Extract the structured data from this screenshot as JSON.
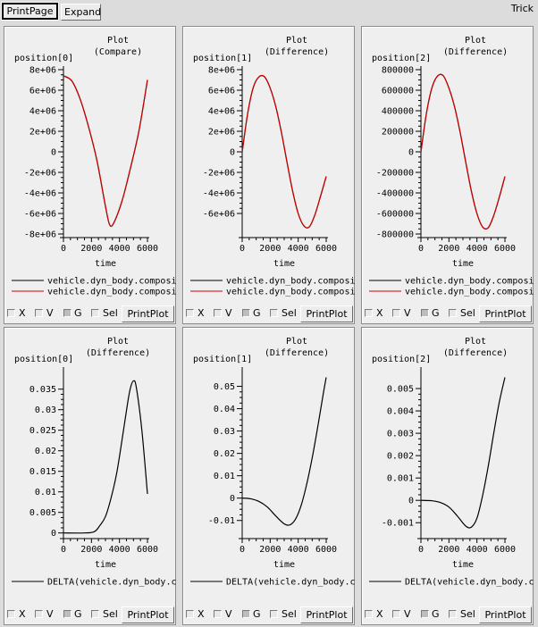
{
  "toolbar": {
    "print_page_label": "PrintPage",
    "expand_label": "Expand",
    "app_label": "Trick"
  },
  "controls": {
    "x_label": "X",
    "v_label": "V",
    "g_label": "G",
    "sel_label": "Sel",
    "print_plot_label": "PrintPlot"
  },
  "colors": {
    "series1": "#000000",
    "series2": "#d00000"
  },
  "chart_data": [
    {
      "type": "line",
      "title": [
        "Plot",
        "(Compare)"
      ],
      "ylabel": "position[0]",
      "xlabel": "time",
      "xlim": [
        0,
        6000
      ],
      "ylim": [
        -8000000,
        8000000
      ],
      "xticks": [
        0,
        2000,
        4000,
        6000
      ],
      "xtick_labels": [
        "0",
        "2000",
        "4000",
        "6000"
      ],
      "yticks": [
        8000000,
        6000000,
        4000000,
        2000000,
        0,
        -2000000,
        -4000000,
        -6000000,
        -8000000
      ],
      "ytick_labels": [
        "8e+06",
        "6e+06",
        "4e+06",
        "2e+06",
        "0",
        "-2e+06",
        "-4e+06",
        "-6e+06",
        "-8e+06"
      ],
      "legend": [
        "vehicle.dyn_body.composi",
        "vehicle.dyn_body.composi"
      ],
      "grid": false,
      "legend_position": "bottom",
      "series": [
        {
          "color": "#000000",
          "x": [
            0,
            600,
            1200,
            1800,
            2400,
            3000,
            3300,
            3600,
            4200,
            4800,
            5400,
            6000
          ],
          "values": [
            7400000,
            6900000,
            5100000,
            2400000,
            -900000,
            -5300000,
            -7100000,
            -6900000,
            -4700000,
            -1500000,
            2100000,
            7000000
          ]
        },
        {
          "color": "#d00000",
          "x": [
            0,
            600,
            1200,
            1800,
            2400,
            3000,
            3300,
            3600,
            4200,
            4800,
            5400,
            6000
          ],
          "values": [
            7400000,
            6900000,
            5100000,
            2400000,
            -900000,
            -5300000,
            -7100000,
            -6900000,
            -4700000,
            -1500000,
            2100000,
            7000000
          ]
        }
      ]
    },
    {
      "type": "line",
      "title": [
        "Plot",
        "(Difference)"
      ],
      "ylabel": "position[1]",
      "xlabel": "time",
      "xlim": [
        0,
        6000
      ],
      "ylim": [
        -8000000,
        8000000
      ],
      "xticks": [
        0,
        2000,
        4000,
        6000
      ],
      "xtick_labels": [
        "0",
        "2000",
        "4000",
        "6000"
      ],
      "yticks": [
        8000000,
        6000000,
        4000000,
        2000000,
        0,
        -2000000,
        -4000000,
        -6000000
      ],
      "ytick_labels": [
        "8e+06",
        "6e+06",
        "4e+06",
        "2e+06",
        "0",
        "-2e+06",
        "-4e+06",
        "-6e+06"
      ],
      "legend": [
        "vehicle.dyn_body.composi",
        "vehicle.dyn_body.composi"
      ],
      "grid": false,
      "legend_position": "bottom",
      "series": [
        {
          "color": "#000000",
          "x": [
            0,
            400,
            800,
            1200,
            1600,
            2000,
            2400,
            2800,
            3200,
            3600,
            4000,
            4400,
            4800,
            5200,
            5600,
            6000
          ],
          "values": [
            0,
            3800000,
            6300000,
            7300000,
            7300000,
            6200000,
            4400000,
            1900000,
            -1000000,
            -3800000,
            -6000000,
            -7200000,
            -7300000,
            -6100000,
            -4300000,
            -2400000
          ]
        },
        {
          "color": "#d00000",
          "x": [
            0,
            400,
            800,
            1200,
            1600,
            2000,
            2400,
            2800,
            3200,
            3600,
            4000,
            4400,
            4800,
            5200,
            5600,
            6000
          ],
          "values": [
            0,
            3800000,
            6300000,
            7300000,
            7300000,
            6200000,
            4400000,
            1900000,
            -1000000,
            -3800000,
            -6000000,
            -7200000,
            -7300000,
            -6100000,
            -4300000,
            -2400000
          ]
        }
      ]
    },
    {
      "type": "line",
      "title": [
        "Plot",
        "(Difference)"
      ],
      "ylabel": "position[2]",
      "xlabel": "time",
      "xlim": [
        0,
        6000
      ],
      "ylim": [
        -800000,
        800000
      ],
      "xticks": [
        0,
        2000,
        4000,
        6000
      ],
      "xtick_labels": [
        "0",
        "2000",
        "4000",
        "6000"
      ],
      "yticks": [
        800000,
        600000,
        400000,
        200000,
        0,
        -200000,
        -400000,
        -600000,
        -800000
      ],
      "ytick_labels": [
        "800000",
        "600000",
        "400000",
        "200000",
        "0",
        "-200000",
        "-400000",
        "-600000",
        "-800000"
      ],
      "legend": [
        "vehicle.dyn_body.composi",
        "vehicle.dyn_body.composi"
      ],
      "grid": false,
      "legend_position": "bottom",
      "series": [
        {
          "color": "#000000",
          "x": [
            0,
            400,
            800,
            1200,
            1600,
            2000,
            2400,
            2800,
            3200,
            3600,
            4000,
            4400,
            4800,
            5200,
            5600,
            6000
          ],
          "values": [
            0,
            380000,
            630000,
            740000,
            740000,
            620000,
            440000,
            190000,
            -100000,
            -380000,
            -600000,
            -730000,
            -740000,
            -620000,
            -440000,
            -240000
          ]
        },
        {
          "color": "#d00000",
          "x": [
            0,
            400,
            800,
            1200,
            1600,
            2000,
            2400,
            2800,
            3200,
            3600,
            4000,
            4400,
            4800,
            5200,
            5600,
            6000
          ],
          "values": [
            0,
            380000,
            630000,
            740000,
            740000,
            620000,
            440000,
            190000,
            -100000,
            -380000,
            -600000,
            -730000,
            -740000,
            -620000,
            -440000,
            -240000
          ]
        }
      ]
    },
    {
      "type": "line",
      "title": [
        "Plot",
        "(Difference)"
      ],
      "ylabel": "position[0]",
      "xlabel": "time",
      "xlim": [
        0,
        6000
      ],
      "ylim": [
        -0.0005,
        0.0395
      ],
      "xticks": [
        0,
        2000,
        4000,
        6000
      ],
      "xtick_labels": [
        "0",
        "2000",
        "4000",
        "6000"
      ],
      "yticks": [
        0.035,
        0.03,
        0.025,
        0.02,
        0.015,
        0.01,
        0.005,
        0
      ],
      "ytick_labels": [
        "0.035",
        "0.03",
        "0.025",
        "0.02",
        "0.015",
        "0.01",
        "0.005",
        "0"
      ],
      "legend": [
        "DELTA(vehicle.dyn_body.c"
      ],
      "grid": false,
      "legend_position": "bottom",
      "series": [
        {
          "color": "#000000",
          "x": [
            0,
            1500,
            2200,
            2600,
            3000,
            3400,
            3800,
            4200,
            4600,
            4800,
            5000,
            5200,
            5600,
            6000
          ],
          "values": [
            0,
            0,
            0.0003,
            0.0018,
            0.004,
            0.0085,
            0.0145,
            0.023,
            0.032,
            0.0355,
            0.037,
            0.0355,
            0.025,
            0.0095
          ]
        }
      ]
    },
    {
      "type": "line",
      "title": [
        "Plot",
        "(Difference)"
      ],
      "ylabel": "position[1]",
      "xlabel": "time",
      "xlim": [
        0,
        6000
      ],
      "ylim": [
        -0.0165,
        0.057
      ],
      "xticks": [
        0,
        2000,
        4000,
        6000
      ],
      "xtick_labels": [
        "0",
        "2000",
        "4000",
        "6000"
      ],
      "yticks": [
        0.05,
        0.04,
        0.03,
        0.02,
        0.01,
        0,
        -0.01
      ],
      "ytick_labels": [
        "0.05",
        "0.04",
        "0.03",
        "0.02",
        "0.01",
        "0",
        "-0.01"
      ],
      "legend": [
        "DELTA(vehicle.dyn_body.c"
      ],
      "grid": false,
      "legend_position": "bottom",
      "series": [
        {
          "color": "#000000",
          "x": [
            0,
            600,
            1200,
            1800,
            2400,
            3000,
            3400,
            3800,
            4200,
            4600,
            5000,
            5400,
            5800,
            6000
          ],
          "values": [
            0,
            -0.0003,
            -0.0015,
            -0.004,
            -0.008,
            -0.0115,
            -0.012,
            -0.0095,
            -0.0035,
            0.006,
            0.018,
            0.032,
            0.047,
            0.054
          ]
        }
      ]
    },
    {
      "type": "line",
      "title": [
        "Plot",
        "(Difference)"
      ],
      "ylabel": "position[2]",
      "xlabel": "time",
      "xlim": [
        0,
        6000
      ],
      "ylim": [
        -0.00155,
        0.0058
      ],
      "xticks": [
        0,
        2000,
        4000,
        6000
      ],
      "xtick_labels": [
        "0",
        "2000",
        "4000",
        "6000"
      ],
      "yticks": [
        0.005,
        0.004,
        0.003,
        0.002,
        0.001,
        0,
        -0.001
      ],
      "ytick_labels": [
        "0.005",
        "0.004",
        "0.003",
        "0.002",
        "0.001",
        "0",
        "-0.001"
      ],
      "legend": [
        "DELTA(vehicle.dyn_body.c"
      ],
      "grid": false,
      "legend_position": "bottom",
      "series": [
        {
          "color": "#000000",
          "x": [
            0,
            800,
            1400,
            2000,
            2600,
            3200,
            3600,
            4000,
            4400,
            4800,
            5200,
            5600,
            6000
          ],
          "values": [
            0,
            -2e-05,
            -0.0001,
            -0.0003,
            -0.0007,
            -0.00115,
            -0.0012,
            -0.0008,
            0.0002,
            0.0015,
            0.003,
            0.0044,
            0.0055
          ]
        }
      ]
    }
  ]
}
